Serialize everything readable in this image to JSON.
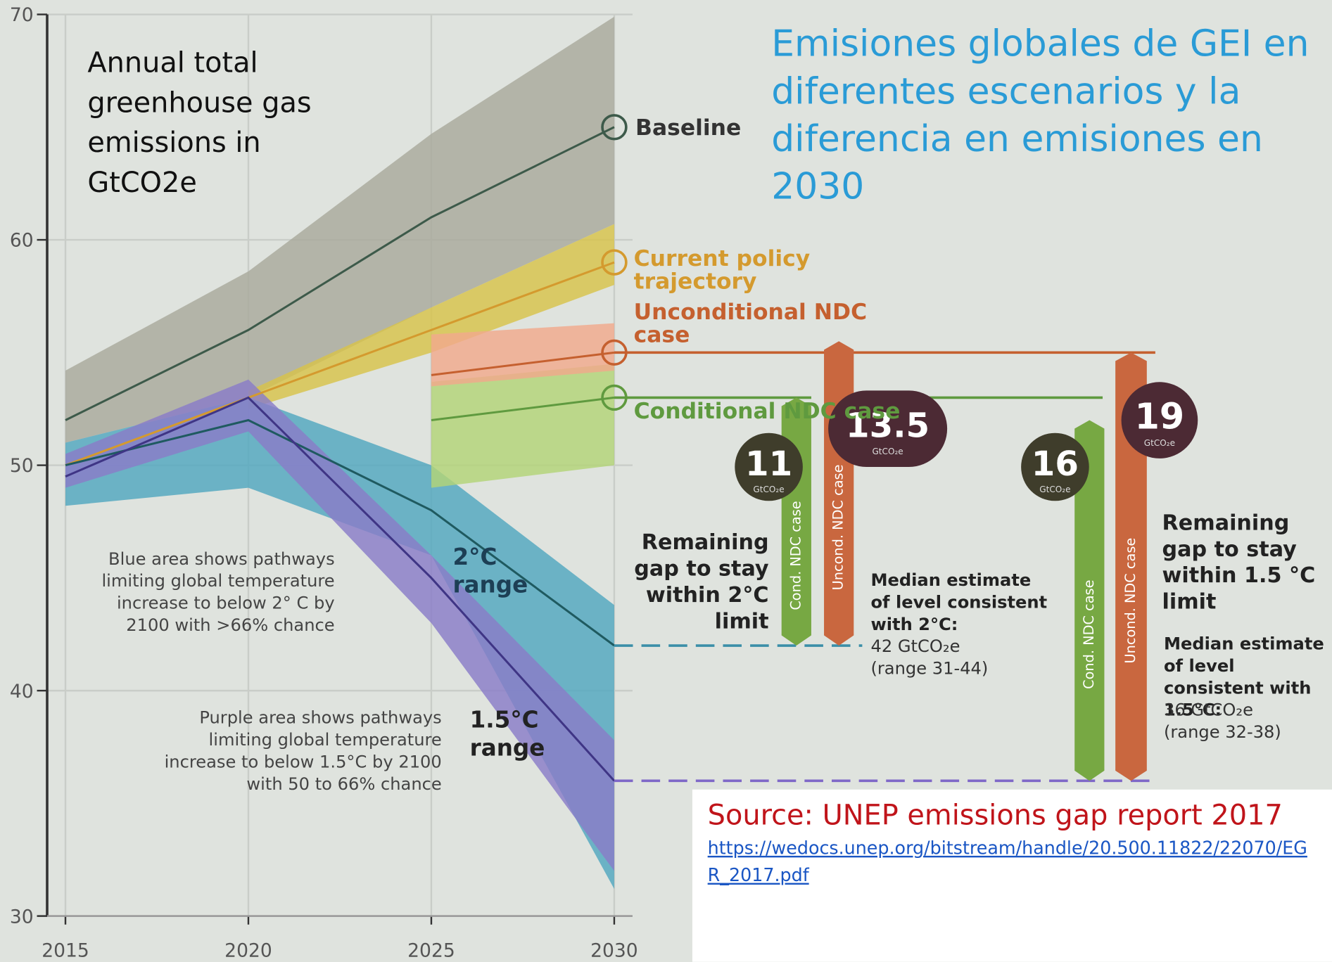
{
  "chart_data": {
    "type": "line",
    "title": "Emisiones globales de GEI en diferentes escenarios y la diferencia en emisiones en 2030",
    "y_label": "Annual total greenhouse gas emissions in GtCO2e",
    "x": [
      2015,
      2020,
      2025,
      2030
    ],
    "xlim": [
      2014.5,
      2030.5
    ],
    "xticks": [
      2015,
      2020,
      2025,
      2030
    ],
    "ylim": [
      30,
      70
    ],
    "yticks": [
      30,
      40,
      50,
      60,
      70
    ],
    "grid": true,
    "series": [
      {
        "name": "Baseline",
        "color": "#3d5a4a",
        "band_color": "#a9aa9c",
        "values": [
          52,
          56,
          61,
          65
        ],
        "upper": [
          54.2,
          58.6,
          64.7,
          69.9
        ],
        "lower": [
          51,
          53,
          57,
          60.7
        ]
      },
      {
        "name": "Current policy trajectory",
        "color": "#d49a2e",
        "band_color": "#d8c34a",
        "values": [
          50,
          53,
          56,
          59
        ],
        "upper": [
          null,
          53.3,
          57,
          60.7
        ],
        "lower": [
          null,
          52.5,
          55,
          58
        ]
      },
      {
        "name": "2°C range",
        "color": "#1f5a60",
        "band_color": "#52a7bf",
        "values": [
          50,
          52,
          48,
          42
        ],
        "upper": [
          51,
          53,
          50,
          43.8
        ],
        "lower": [
          48.2,
          49,
          46,
          31.2
        ]
      },
      {
        "name": "1.5°C range",
        "color": "#3f3585",
        "band_color": "#8a7cc8",
        "values": [
          49.5,
          53,
          45,
          36
        ],
        "upper": [
          50.5,
          53.8,
          46,
          37.8
        ],
        "lower": [
          49,
          51.5,
          43,
          32
        ]
      },
      {
        "name": "Conditional NDC case",
        "color": "#5f9a3f",
        "band_color": "#b3d477",
        "values": [
          null,
          null,
          52,
          53
        ],
        "upper": [
          null,
          null,
          53.7,
          54.5
        ],
        "lower": [
          null,
          null,
          49,
          50
        ]
      },
      {
        "name": "Unconditional NDC case",
        "color": "#c5602f",
        "band_color": "#f1a98c",
        "values": [
          null,
          null,
          54,
          55
        ],
        "upper": [
          null,
          null,
          55.8,
          56.3
        ],
        "lower": [
          null,
          null,
          53.5,
          54.2
        ]
      }
    ],
    "targets": [
      {
        "value": 42,
        "heading": "Remaining gap to stay within 2°C limit",
        "median": "Median estimate of level consistent with 2°C:",
        "detail": "42 GtCO₂e (range 31-44)"
      },
      {
        "value": 36,
        "heading": "Remaining gap to stay within 1.5 °C limit",
        "median": "Median estimate of level consistent with 1.5°C:",
        "detail": "36 GtCO₂e (range 32-38)"
      }
    ],
    "gaps": [
      {
        "target": 0,
        "value": 11,
        "unit": "GtCO₂e",
        "bar_label": "Cond. NDC case"
      },
      {
        "target": 0,
        "value": 13.5,
        "unit": "GtCO₂e",
        "bar_label": "Uncond. NDC case"
      },
      {
        "target": 1,
        "value": 16,
        "unit": "GtCO₂e",
        "bar_label": "Cond. NDC case"
      },
      {
        "target": 1,
        "value": 19,
        "unit": "GtCO₂e",
        "bar_label": "Uncond. NDC case"
      }
    ],
    "notes": [
      "Blue area shows pathways limiting global temperature increase to below 2° C by 2100 with >66% chance",
      "Purple area shows pathways limiting global temperature increase to below 1.5°C by 2100 with 50 to 66% chance"
    ],
    "source": "Source: UNEP emissions gap report 2017",
    "source_url": "https://wedocs.unep.org/bitstream/handle/20.500.11822/22070/EGR_2017.pdf"
  }
}
